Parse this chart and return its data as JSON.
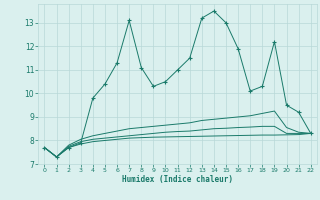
{
  "xlabel": "Humidex (Indice chaleur)",
  "x": [
    0,
    1,
    2,
    3,
    4,
    5,
    6,
    7,
    8,
    9,
    10,
    11,
    12,
    13,
    14,
    15,
    16,
    17,
    18,
    19,
    20,
    21,
    22
  ],
  "line1": [
    7.7,
    7.3,
    7.7,
    7.9,
    9.8,
    10.4,
    11.3,
    13.1,
    11.1,
    10.3,
    10.5,
    11.0,
    11.5,
    13.2,
    13.5,
    13.0,
    11.9,
    10.1,
    10.3,
    12.2,
    9.5,
    9.2,
    8.3
  ],
  "line2": [
    7.7,
    7.3,
    7.7,
    7.85,
    7.95,
    8.0,
    8.05,
    8.1,
    8.12,
    8.14,
    8.15,
    8.16,
    8.17,
    8.18,
    8.19,
    8.2,
    8.21,
    8.22,
    8.23,
    8.23,
    8.24,
    8.25,
    8.3
  ],
  "line3": [
    7.7,
    7.3,
    7.75,
    7.95,
    8.05,
    8.1,
    8.15,
    8.2,
    8.25,
    8.3,
    8.35,
    8.38,
    8.4,
    8.45,
    8.5,
    8.52,
    8.55,
    8.57,
    8.6,
    8.6,
    8.3,
    8.3,
    8.3
  ],
  "line4": [
    7.7,
    7.3,
    7.8,
    8.05,
    8.2,
    8.3,
    8.4,
    8.5,
    8.55,
    8.6,
    8.65,
    8.7,
    8.75,
    8.85,
    8.9,
    8.95,
    9.0,
    9.05,
    9.15,
    9.25,
    8.55,
    8.35,
    8.3
  ],
  "line_color": "#1a7a6a",
  "bg_color": "#daf0ee",
  "grid_color": "#b8d8d8",
  "ylim": [
    7,
    13.8
  ],
  "yticks": [
    7,
    8,
    9,
    10,
    11,
    12,
    13
  ],
  "xticks": [
    0,
    1,
    2,
    3,
    4,
    5,
    6,
    7,
    8,
    9,
    10,
    11,
    12,
    13,
    14,
    15,
    16,
    17,
    18,
    19,
    20,
    21,
    22
  ]
}
